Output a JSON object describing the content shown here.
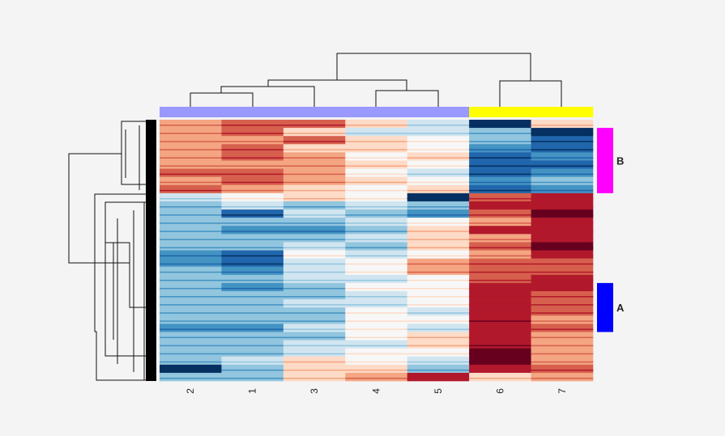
{
  "chart_data": {
    "type": "heatmap",
    "title": "",
    "columns": [
      "2",
      "1",
      "3",
      "4",
      "5",
      "6",
      "7"
    ],
    "column_groups": [
      {
        "columns": [
          "2",
          "1",
          "3",
          "4",
          "5"
        ],
        "color": "#9999ff"
      },
      {
        "columns": [
          "6",
          "7"
        ],
        "color": "#ffff00"
      }
    ],
    "row_annotations": [
      {
        "label": "B",
        "color": "#ff00ff",
        "rows_from": 1,
        "rows_to": 8
      },
      {
        "label": "A",
        "color": "#0000ff",
        "rows_from": 20,
        "rows_to": 25
      }
    ],
    "colormap": "RdBu (blue negative, red positive)",
    "value_range": [
      -3,
      3
    ],
    "matrix": [
      [
        1,
        1.5,
        1.5,
        0.3,
        -0.5,
        -3,
        0.5
      ],
      [
        1,
        1.5,
        0.5,
        -0.5,
        -0.5,
        -1,
        -3
      ],
      [
        1,
        1,
        1.5,
        0.5,
        0,
        -1,
        -2
      ],
      [
        1,
        1.5,
        0.5,
        0.5,
        0,
        -1.5,
        -2
      ],
      [
        1,
        1.5,
        1,
        0,
        0.5,
        -2,
        -1.5
      ],
      [
        1,
        1,
        1,
        0.5,
        0,
        -2,
        -2
      ],
      [
        1.5,
        1.5,
        1,
        0,
        -0.5,
        -2,
        -1.5
      ],
      [
        1,
        1.5,
        1,
        0.5,
        0,
        -1.5,
        -1
      ],
      [
        1.5,
        1,
        0.5,
        0,
        0.5,
        -2,
        -1.5
      ],
      [
        -0.5,
        0,
        0.5,
        0,
        -3,
        1.5,
        2
      ],
      [
        -1,
        -0.5,
        -1,
        -0.5,
        -1,
        2,
        2
      ],
      [
        -1,
        -2,
        -0.5,
        -1,
        -1.5,
        1.5,
        3
      ],
      [
        -1,
        -1,
        -1,
        -0.5,
        0,
        1,
        2
      ],
      [
        -1,
        -1.5,
        -1.5,
        -1,
        0.5,
        2,
        2
      ],
      [
        -1,
        -1,
        -1,
        -0.5,
        0.5,
        1,
        2
      ],
      [
        -1,
        -1,
        -0.5,
        -1,
        0.5,
        1.5,
        3
      ],
      [
        -1.5,
        -2,
        0,
        -0.5,
        0,
        1,
        2
      ],
      [
        -1.5,
        -2,
        -0.5,
        0,
        1,
        1.5,
        1.5
      ],
      [
        -1,
        -1.5,
        -0.5,
        0,
        1,
        1.5,
        1.5
      ],
      [
        -1,
        -1,
        -0.5,
        -0.5,
        0,
        1.5,
        2
      ],
      [
        -1,
        -1.5,
        -1,
        0,
        0,
        2,
        2
      ],
      [
        -1,
        -1,
        -1,
        -0.5,
        0,
        2,
        1.5
      ],
      [
        -1,
        -1,
        -0.5,
        -0.5,
        0,
        2,
        1.5
      ],
      [
        -1,
        -1,
        -1,
        0,
        -0.5,
        2,
        1.5
      ],
      [
        -1,
        -1,
        -1,
        0,
        0,
        2.5,
        1
      ],
      [
        -1.5,
        -1.5,
        -0.5,
        0,
        -0.5,
        2,
        1.5
      ],
      [
        -1,
        -1,
        -1,
        0,
        0.5,
        2,
        1
      ],
      [
        -1,
        -1,
        -0.5,
        -0.5,
        0.5,
        2.5,
        1
      ],
      [
        -1,
        -1,
        -0.5,
        0,
        0,
        3,
        1
      ],
      [
        -1,
        -0.5,
        0.5,
        0,
        -0.5,
        3,
        1
      ],
      [
        -3,
        -1,
        0.5,
        0.5,
        -1,
        2,
        1.5
      ],
      [
        -1,
        -1,
        0.5,
        1,
        2,
        0.5,
        1
      ]
    ]
  }
}
